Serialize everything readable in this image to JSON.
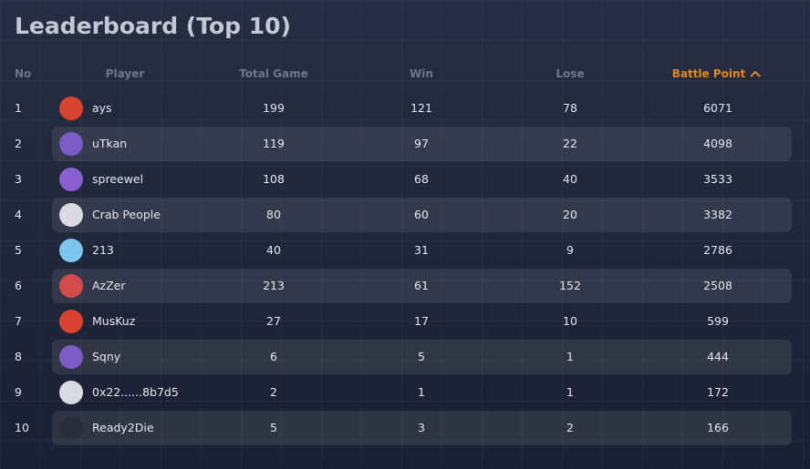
{
  "header": {
    "title": "Leaderboard (Top 10)"
  },
  "table": {
    "columns": [
      "No",
      "Player",
      "Total Game",
      "Win",
      "Lose",
      "Battle Point"
    ],
    "rows": [
      [
        1,
        "ays",
        199,
        121,
        78,
        6071
      ],
      [
        2,
        "uTkan",
        119,
        97,
        22,
        4098
      ],
      [
        3,
        "spreewel",
        108,
        68,
        40,
        3533
      ],
      [
        4,
        "Crab People",
        80,
        60,
        20,
        3382
      ],
      [
        5,
        "213",
        40,
        31,
        9,
        2786
      ],
      [
        6,
        "AzZer",
        213,
        61,
        152,
        2508
      ],
      [
        7,
        "MusKuz",
        27,
        17,
        10,
        599
      ],
      [
        8,
        "Sqny",
        6,
        5,
        1,
        444
      ],
      [
        9,
        "0x22......8b7d5",
        2,
        1,
        1,
        172
      ],
      [
        10,
        "Ready2Die",
        5,
        3,
        2,
        166
      ]
    ]
  }
}
